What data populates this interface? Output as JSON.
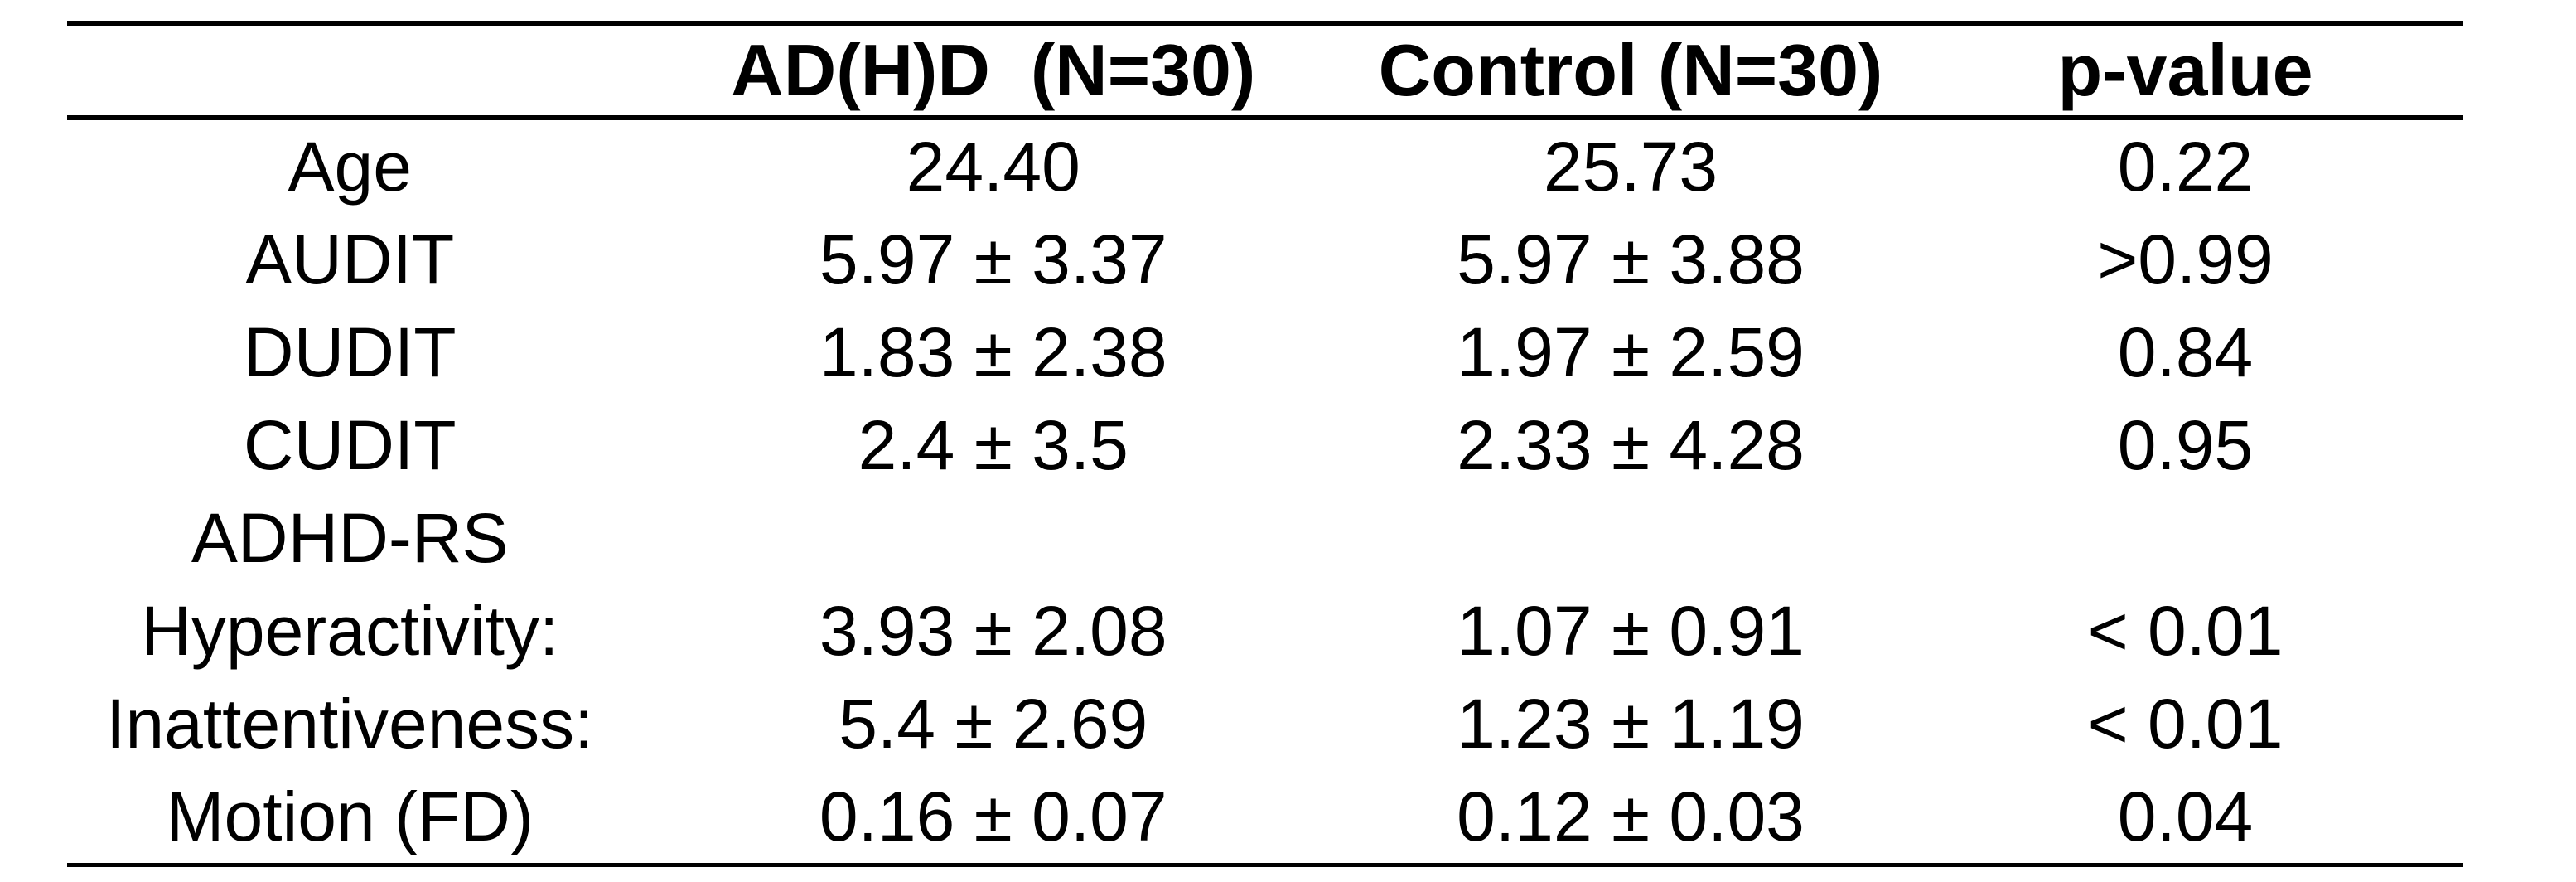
{
  "table": {
    "columns": [
      "",
      "AD(H)D  (N=30)",
      "Control (N=30)",
      "p-value"
    ],
    "rows": [
      {
        "label": "Age",
        "adhd": "24.40",
        "control": "25.73",
        "p": "0.22"
      },
      {
        "label": "AUDIT",
        "adhd": "5.97 ± 3.37",
        "control": "5.97 ± 3.88",
        "p": ">0.99"
      },
      {
        "label": "DUDIT",
        "adhd": "1.83 ± 2.38",
        "control": "1.97 ± 2.59",
        "p": "0.84"
      },
      {
        "label": "CUDIT",
        "adhd": "2.4 ± 3.5",
        "control": "2.33 ± 4.28",
        "p": "0.95"
      },
      {
        "label": "ADHD-RS",
        "adhd": "",
        "control": "",
        "p": ""
      },
      {
        "label": "Hyperactivity:",
        "adhd": "3.93 ± 2.08",
        "control": "1.07 ± 0.91",
        "p": "< 0.01"
      },
      {
        "label": "Inattentiveness:",
        "adhd": "5.4 ± 2.69",
        "control": "1.23 ± 1.19",
        "p": "< 0.01"
      },
      {
        "label": "Motion (FD)",
        "adhd": "0.16 ± 0.07",
        "control": "0.12 ± 0.03",
        "p": "0.04"
      }
    ]
  },
  "colors": {
    "text": "#000000",
    "background": "#ffffff",
    "rule": "#000000"
  }
}
